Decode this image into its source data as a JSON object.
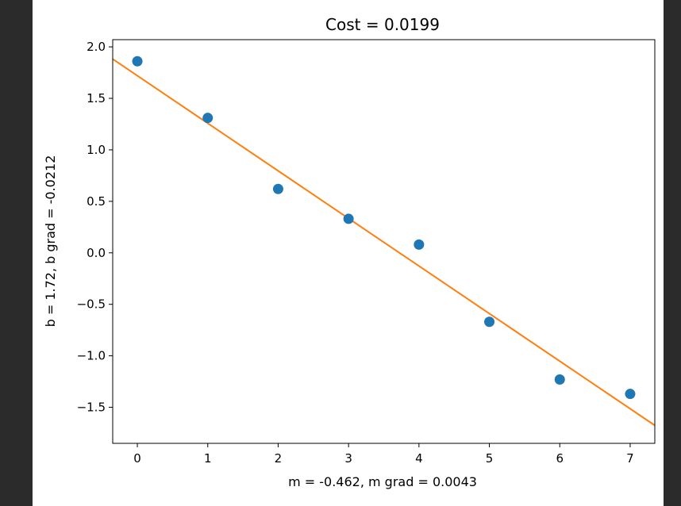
{
  "chart_data": {
    "type": "scatter",
    "title": "Cost = 0.0199",
    "xlabel": "m = -0.462, m grad = 0.0043",
    "ylabel": "b = 1.72, b grad = -0.0212",
    "xlim": [
      -0.35,
      7.35
    ],
    "ylim": [
      -1.85,
      2.07
    ],
    "xticks": [
      0,
      1,
      2,
      3,
      4,
      5,
      6,
      7
    ],
    "xtick_labels": [
      "0",
      "1",
      "2",
      "3",
      "4",
      "5",
      "6",
      "7"
    ],
    "yticks": [
      -1.5,
      -1.0,
      -0.5,
      0.0,
      0.5,
      1.0,
      1.5,
      2.0
    ],
    "ytick_labels": [
      "−1.5",
      "−1.0",
      "−0.5",
      "0.0",
      "0.5",
      "1.0",
      "1.5",
      "2.0"
    ],
    "grid": false,
    "series": [
      {
        "type": "scatter",
        "color": "#1f77b4",
        "x": [
          0,
          1,
          2,
          3,
          4,
          5,
          6,
          7
        ],
        "y": [
          1.86,
          1.31,
          0.62,
          0.33,
          0.08,
          -0.67,
          -1.23,
          -1.37
        ]
      },
      {
        "type": "line",
        "color": "#ff7f0e",
        "slope": -0.462,
        "intercept": 1.72
      }
    ]
  }
}
